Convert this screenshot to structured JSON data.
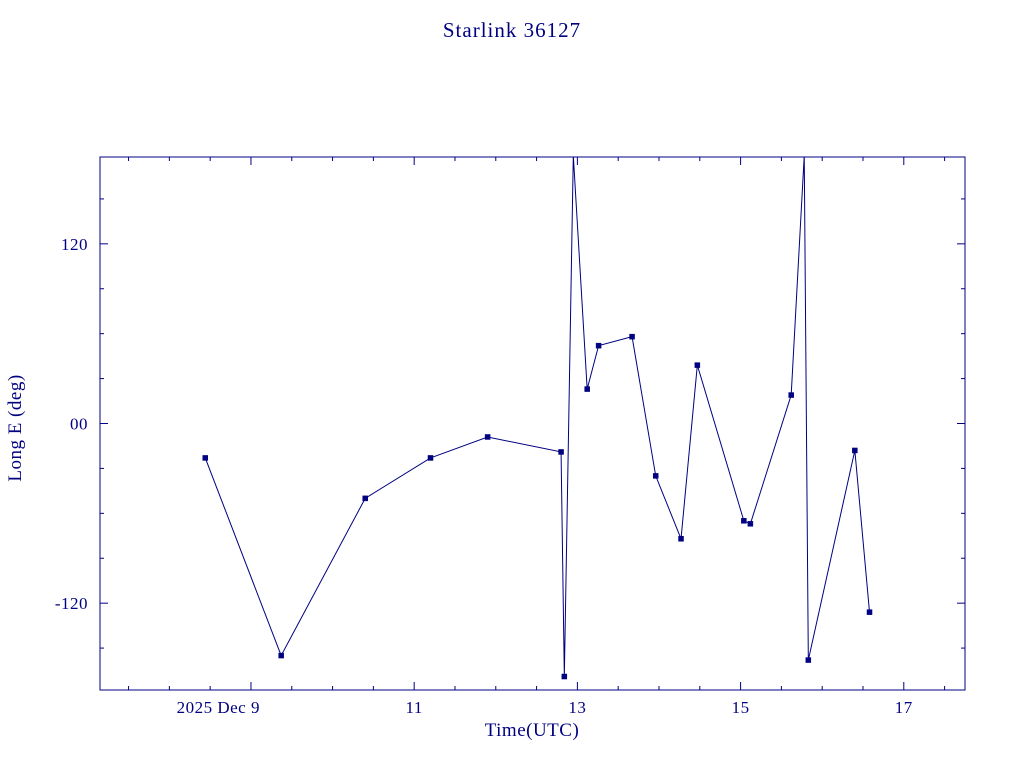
{
  "chart_data": {
    "type": "line",
    "title": "Starlink 36127",
    "xlabel": "Time(UTC)",
    "ylabel": "Long E (deg)",
    "xlim": [
      7.15,
      17.75
    ],
    "ylim": [
      -178,
      178
    ],
    "grid": false,
    "legend": "none",
    "background": "#ffffff",
    "axis_color": "#000080",
    "x_ticks": [
      {
        "value": 9,
        "label": "2025 Dec 9",
        "align": "end"
      },
      {
        "value": 11,
        "label": "11",
        "align": "middle"
      },
      {
        "value": 13,
        "label": "13",
        "align": "middle"
      },
      {
        "value": 15,
        "label": "15",
        "align": "middle"
      },
      {
        "value": 17,
        "label": "17",
        "align": "middle"
      }
    ],
    "y_ticks": [
      {
        "value": -120,
        "label": "-120"
      },
      {
        "value": 0,
        "label": "00"
      },
      {
        "value": 120,
        "label": "120"
      }
    ],
    "x_minor_step": 0.5,
    "y_minor_step": 30,
    "series": [
      {
        "name": "Long E",
        "color": "#000080",
        "marker": "square",
        "points": [
          {
            "x": 8.44,
            "y": -23
          },
          {
            "x": 9.37,
            "y": -155
          },
          {
            "x": 10.4,
            "y": -50
          },
          {
            "x": 11.2,
            "y": -23
          },
          {
            "x": 11.9,
            "y": -9
          },
          {
            "x": 12.8,
            "y": -19
          },
          {
            "x": 12.84,
            "y": -169
          },
          {
            "x": 12.95,
            "y": 179,
            "offscale": true
          },
          {
            "x": 13.12,
            "y": 23
          },
          {
            "x": 13.26,
            "y": 52
          },
          {
            "x": 13.67,
            "y": 58
          },
          {
            "x": 13.96,
            "y": -35
          },
          {
            "x": 14.27,
            "y": -77
          },
          {
            "x": 14.47,
            "y": 39
          },
          {
            "x": 15.04,
            "y": -65
          },
          {
            "x": 15.12,
            "y": -67
          },
          {
            "x": 15.62,
            "y": 19
          },
          {
            "x": 15.78,
            "y": 179,
            "offscale": true
          },
          {
            "x": 15.83,
            "y": -158
          },
          {
            "x": 16.4,
            "y": -18
          },
          {
            "x": 16.58,
            "y": -126
          }
        ]
      }
    ]
  }
}
